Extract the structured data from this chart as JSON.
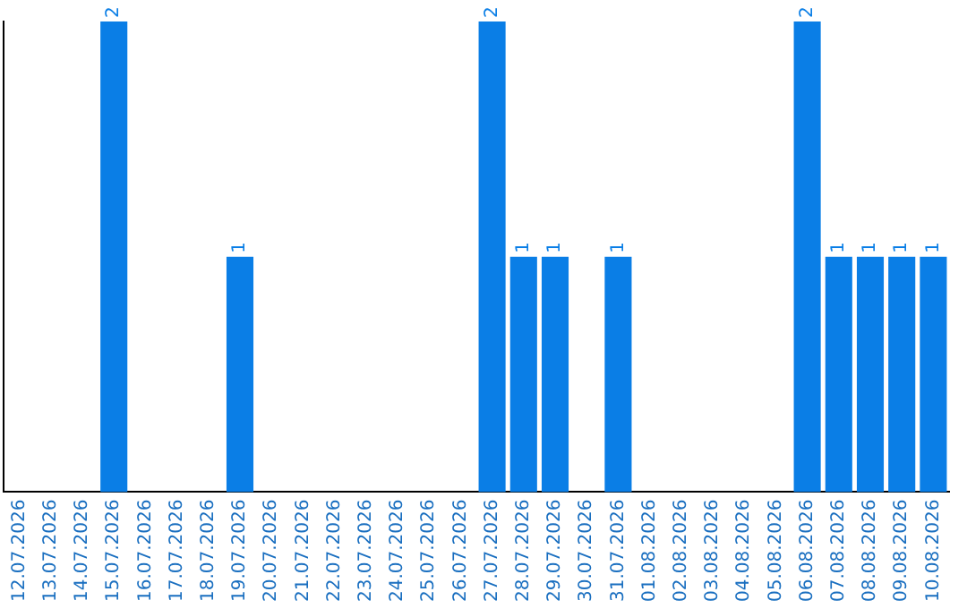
{
  "chart_data": {
    "type": "bar",
    "categories": [
      "12.07.2026",
      "13.07.2026",
      "14.07.2026",
      "15.07.2026",
      "16.07.2026",
      "17.07.2026",
      "18.07.2026",
      "19.07.2026",
      "20.07.2026",
      "21.07.2026",
      "22.07.2026",
      "23.07.2026",
      "24.07.2026",
      "25.07.2026",
      "26.07.2026",
      "27.07.2026",
      "28.07.2026",
      "29.07.2026",
      "30.07.2026",
      "31.07.2026",
      "01.08.2026",
      "02.08.2026",
      "03.08.2026",
      "04.08.2026",
      "05.08.2026",
      "06.08.2026",
      "07.08.2026",
      "08.08.2026",
      "09.08.2026",
      "10.08.2026"
    ],
    "values": [
      0,
      0,
      0,
      2,
      0,
      0,
      0,
      1,
      0,
      0,
      0,
      0,
      0,
      0,
      0,
      2,
      1,
      1,
      0,
      1,
      0,
      0,
      0,
      0,
      0,
      2,
      1,
      1,
      1,
      1
    ],
    "value_labels": [
      null,
      null,
      null,
      "2",
      null,
      null,
      null,
      "1",
      null,
      null,
      null,
      null,
      null,
      null,
      null,
      "2",
      "1",
      "1",
      null,
      "1",
      null,
      null,
      null,
      null,
      null,
      "2",
      "1",
      "1",
      "1",
      "1"
    ],
    "color": "#0a7ee6",
    "tick_labels": "x",
    "grid": false,
    "legend": false
  }
}
